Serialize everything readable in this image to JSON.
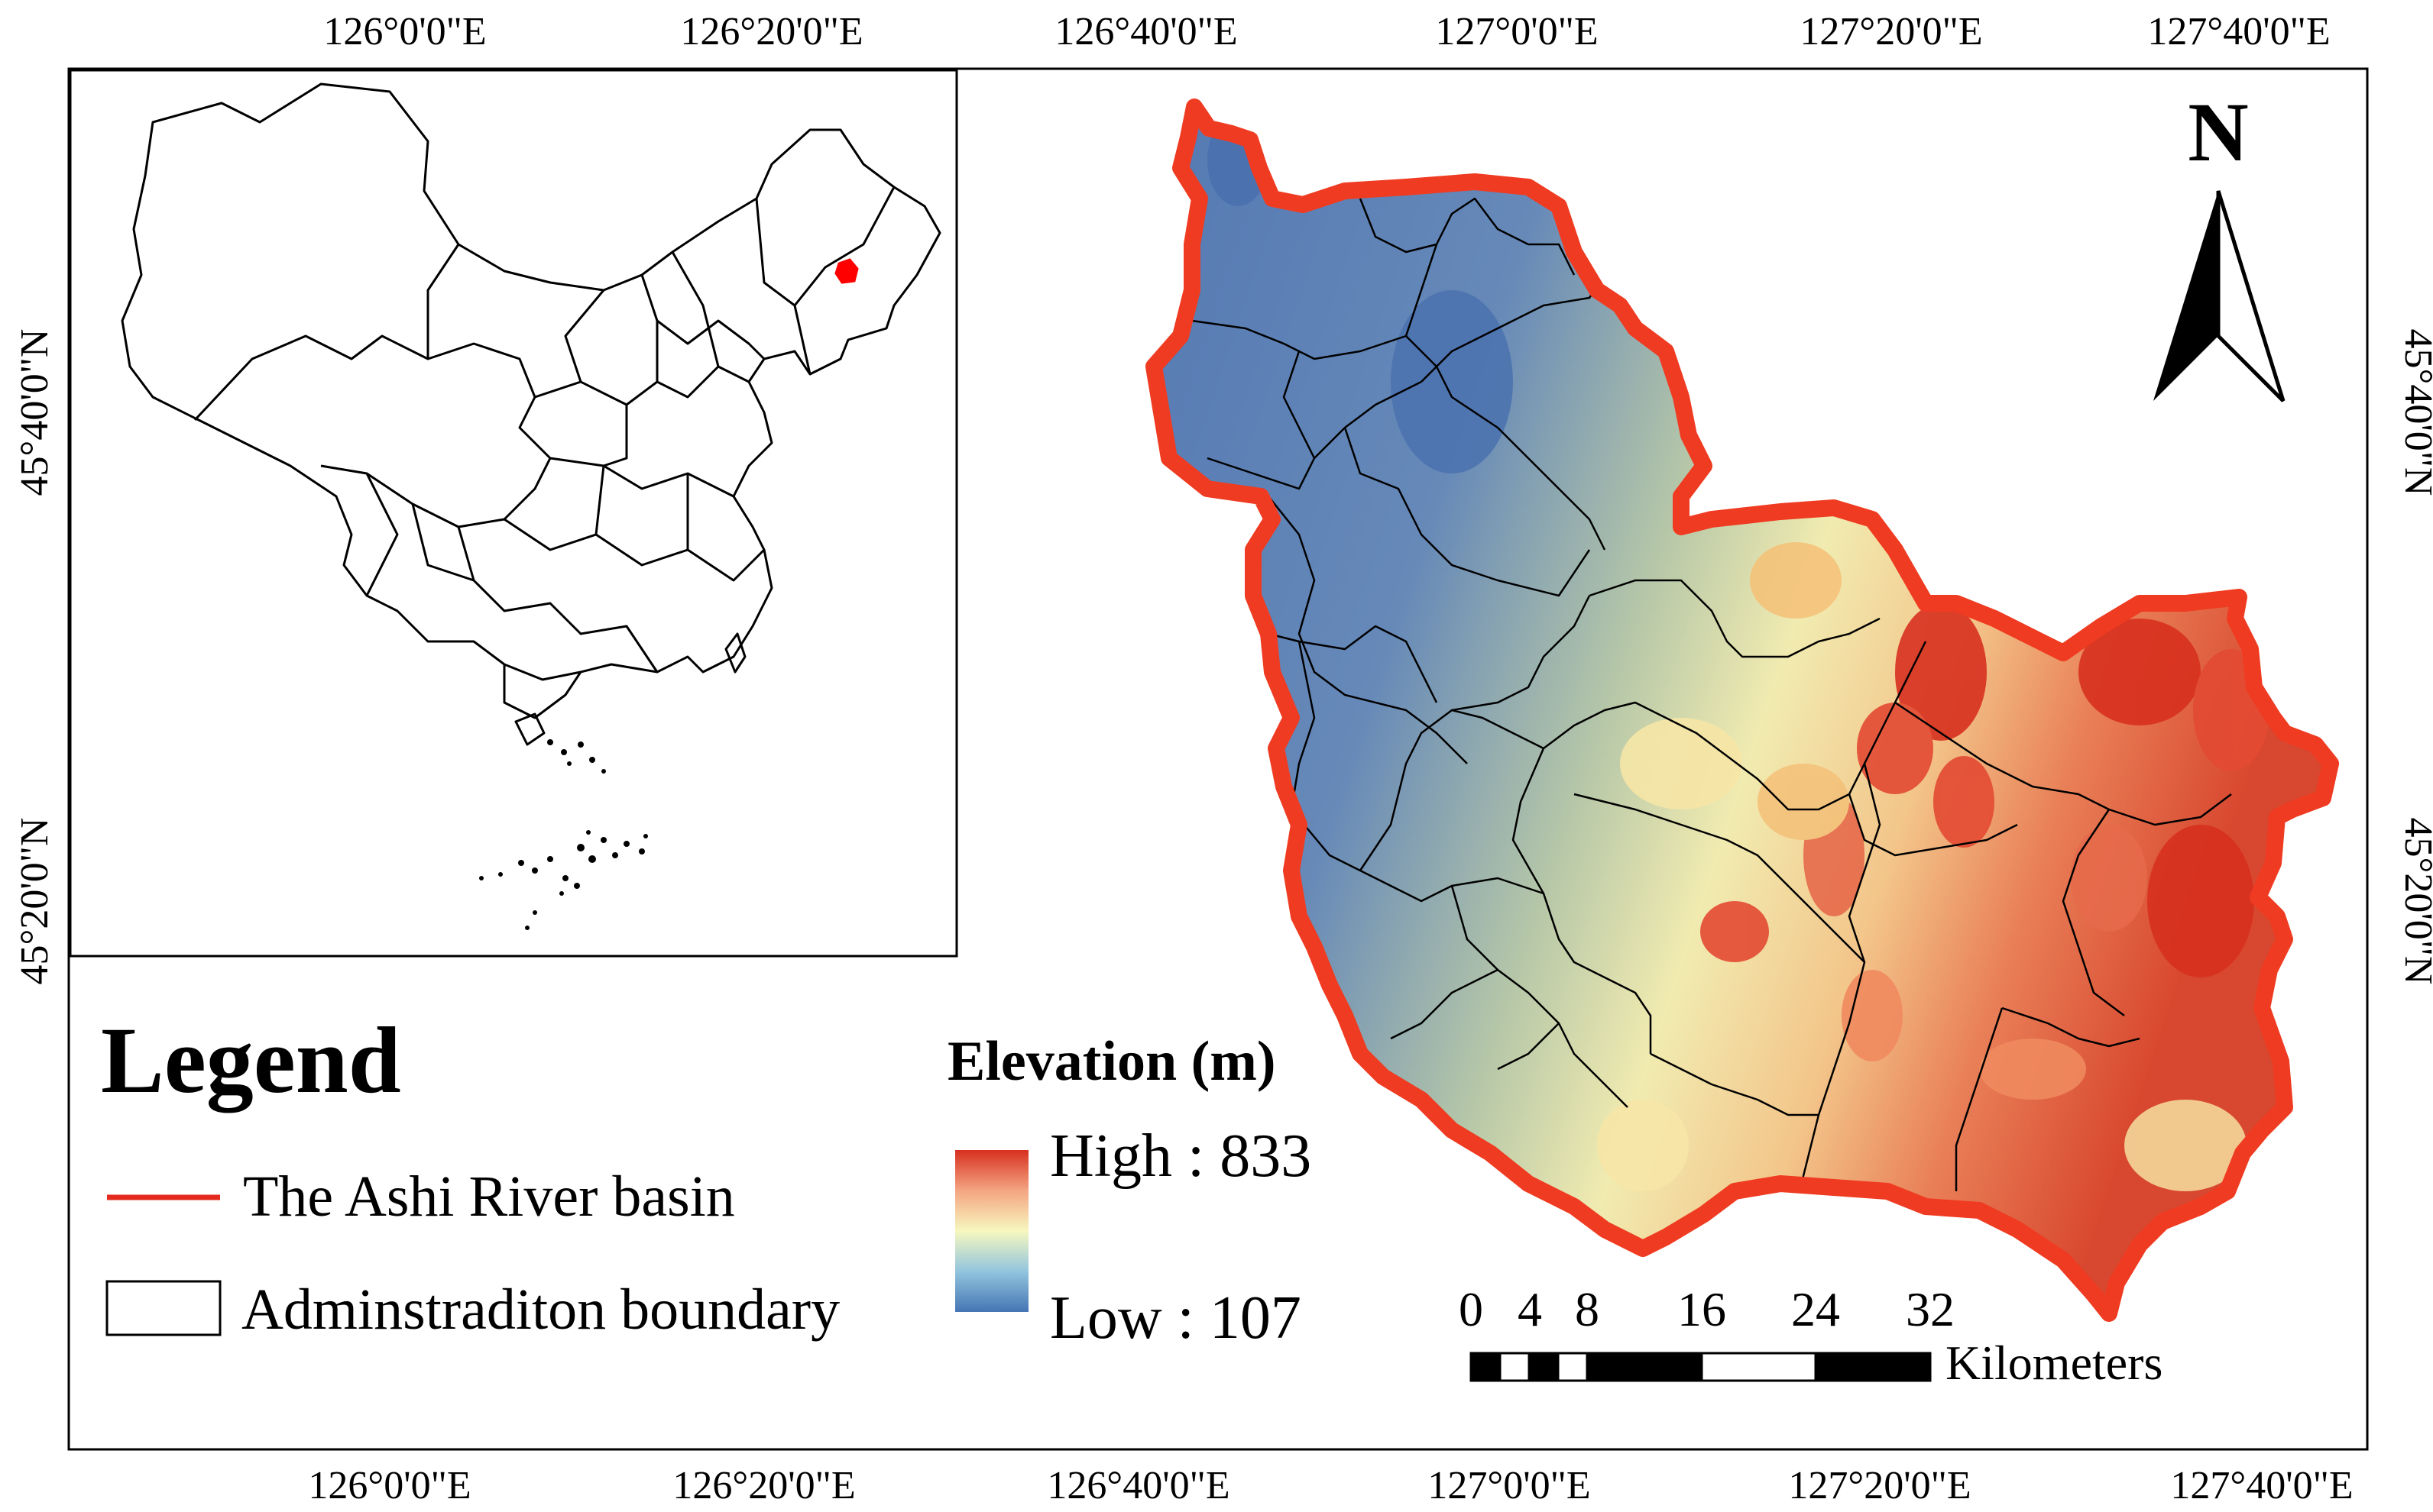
{
  "coordinates": {
    "top_longitudes": [
      "126°0'0\"E",
      "126°20'0\"E",
      "126°40'0\"E",
      "127°0'0\"E",
      "127°20'0\"E",
      "127°40'0\"E"
    ],
    "bottom_longitudes": [
      "126°0'0\"E",
      "126°20'0\"E",
      "126°40'0\"E",
      "127°0'0\"E",
      "127°20'0\"E",
      "127°40'0\"E"
    ],
    "left_latitudes": [
      "45°40'0\"N",
      "45°20'0\"N"
    ],
    "right_latitudes": [
      "45°40'0\"N",
      "45°20'0\"N"
    ]
  },
  "north_arrow": {
    "label": "N"
  },
  "legend": {
    "title": "Legend",
    "items": [
      {
        "label": "The Ashi River basin",
        "symbol": "red-line",
        "color": "#e32a1c"
      },
      {
        "label": "Adminstraditon boundary",
        "symbol": "hollow-rectangle",
        "color": "#000000"
      }
    ]
  },
  "elevation": {
    "title": "Elevation (m)",
    "high_label": "High : 833",
    "low_label": "Low : 107",
    "high": 833,
    "low": 107,
    "ramp_colors": [
      "#d7301f",
      "#f4a582",
      "#f7f7bf",
      "#92c5de",
      "#4575b4"
    ]
  },
  "scale_bar": {
    "ticks": [
      "0",
      "4",
      "8",
      "16",
      "24",
      "32"
    ],
    "unit": "Kilometers"
  },
  "colors": {
    "basin_outline": "#ef3b21",
    "admin_boundary": "#000000",
    "locator_highlight": "#ff0000",
    "lowland": "#5a83b8",
    "highland": "#d73027"
  }
}
